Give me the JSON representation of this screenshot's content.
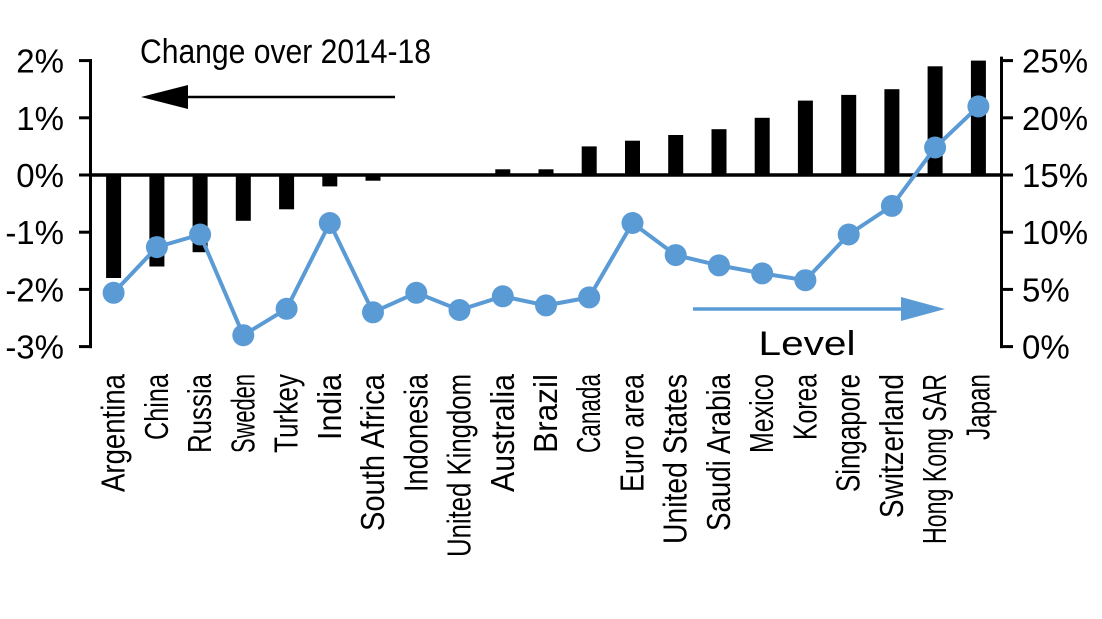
{
  "figure": {
    "kind": "combo chart (bar + line), dual axis",
    "background": "#ffffff"
  },
  "annotations": {
    "bar_series_label": "Change over 2014-18",
    "line_series_label": "Level"
  },
  "chart_data": {
    "type": "bar",
    "subtype": "combo-bar-line-dual-axis",
    "title": "",
    "xlabel": "",
    "ylabel_left": "Change over 2014-18",
    "ylabel_right": "Level",
    "grid": false,
    "categories": [
      "Argentina",
      "China",
      "Russia",
      "Sweden",
      "Turkey",
      "India",
      "South Africa",
      "Indonesia",
      "United Kingdom",
      "Australia",
      "Brazil",
      "Canada",
      "Euro area",
      "United States",
      "Saudi Arabia",
      "Mexico",
      "Korea",
      "Singapore",
      "Switzerland",
      "Hong Kong SAR",
      "Japan"
    ],
    "series": [
      {
        "name": "Change over 2014-18",
        "type": "bar",
        "axis": "left",
        "color": "#000000",
        "unit": "%",
        "values": [
          -1.8,
          -1.6,
          -1.35,
          -0.8,
          -0.6,
          -0.2,
          -0.1,
          0,
          0,
          0.1,
          0.1,
          0.5,
          0.6,
          0.7,
          0.8,
          1.0,
          1.3,
          1.4,
          1.5,
          1.9,
          2.0
        ]
      },
      {
        "name": "Level",
        "type": "line",
        "axis": "right",
        "color": "#5b9bd5",
        "marker": "circle",
        "unit": "%",
        "values": [
          4.7,
          8.7,
          9.8,
          1.0,
          3.3,
          10.8,
          3.0,
          4.7,
          3.2,
          4.4,
          3.6,
          4.3,
          10.8,
          8.0,
          7.1,
          6.4,
          5.8,
          9.8,
          12.3,
          17.4,
          21.0
        ]
      }
    ],
    "left_axis": {
      "min": -3,
      "max": 2,
      "tick_values": [
        2,
        1,
        0,
        -1,
        -2,
        -3
      ],
      "tick_labels": [
        "2%",
        "1%",
        "0%",
        "-1%",
        "-2%",
        "-3%"
      ]
    },
    "right_axis": {
      "min": 0,
      "max": 25,
      "tick_values": [
        25,
        20,
        15,
        10,
        5,
        0
      ],
      "tick_labels": [
        "25%",
        "20%",
        "15%",
        "10%",
        "5%",
        "0%"
      ]
    },
    "legend_position": "in-plot arrow annotations (left arrow = bars, right arrow = line)"
  }
}
